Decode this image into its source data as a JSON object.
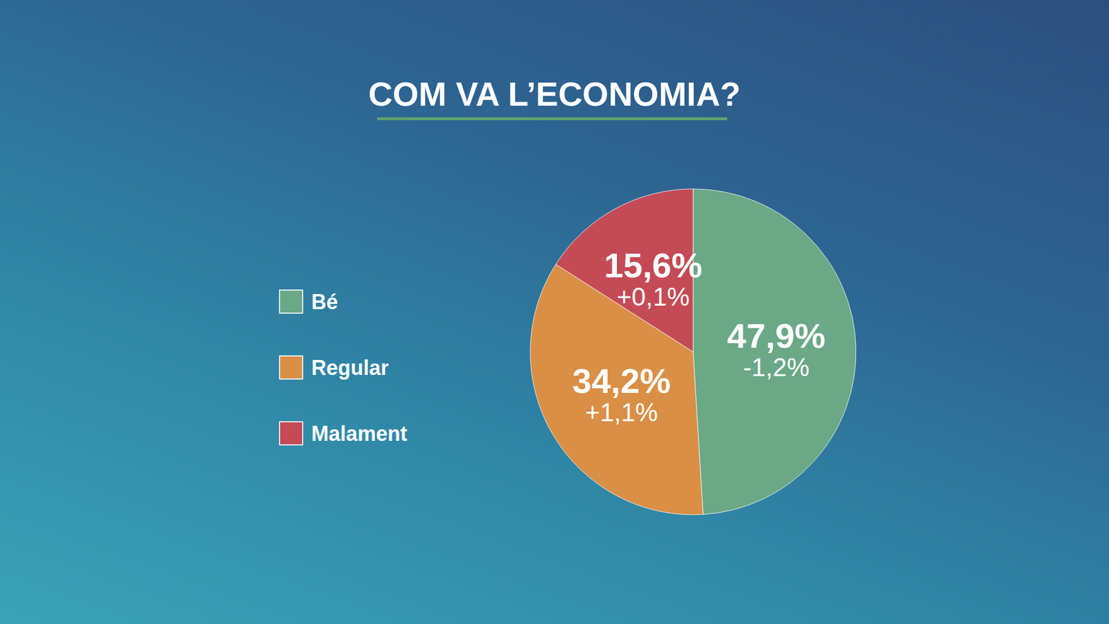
{
  "chart_data": {
    "type": "pie",
    "title": "COM VA L’ECONOMIA?",
    "categories": [
      "Bé",
      "Regular",
      "Malament"
    ],
    "values": [
      47.9,
      34.2,
      15.6
    ],
    "value_labels": [
      "47,9%",
      "34,2%",
      "15,6%"
    ],
    "change_labels": [
      "-1,2%",
      "+1,1%",
      "+0,1%"
    ],
    "colors": [
      "#6aa886",
      "#d98f45",
      "#c44b55"
    ],
    "data_labels": true,
    "legend": "left"
  }
}
